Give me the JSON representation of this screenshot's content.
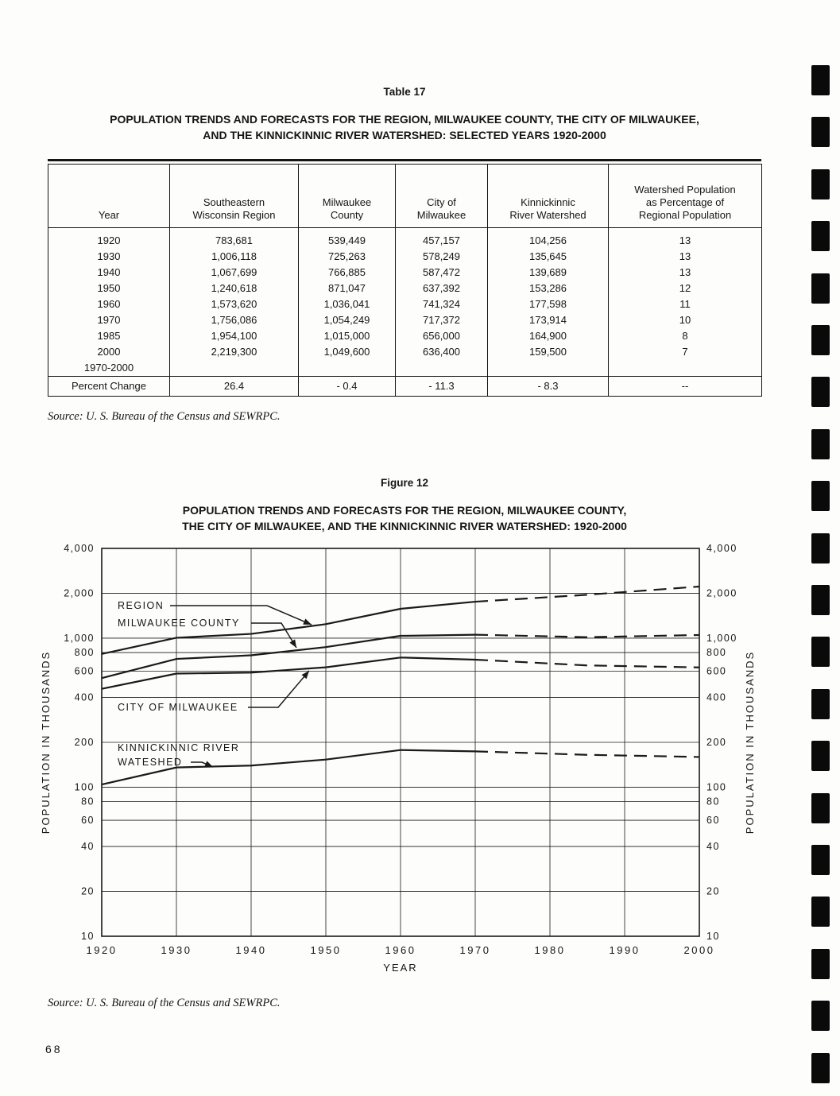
{
  "page": {
    "number": "68"
  },
  "table": {
    "label": "Table 17",
    "title_line1": "POPULATION TRENDS AND FORECASTS FOR THE REGION, MILWAUKEE COUNTY, THE CITY OF MILWAUKEE,",
    "title_line2": "AND THE KINNICKINNIC RIVER WATERSHED: SELECTED YEARS 1920-2000",
    "columns": [
      "Year",
      "Southeastern\nWisconsin Region",
      "Milwaukee\nCounty",
      "City of\nMilwaukee",
      "Kinnickinnic\nRiver Watershed",
      "Watershed Population\nas Percentage of\nRegional Population"
    ],
    "rows": [
      [
        "1920",
        "783,681",
        "539,449",
        "457,157",
        "104,256",
        "13"
      ],
      [
        "1930",
        "1,006,118",
        "725,263",
        "578,249",
        "135,645",
        "13"
      ],
      [
        "1940",
        "1,067,699",
        "766,885",
        "587,472",
        "139,689",
        "13"
      ],
      [
        "1950",
        "1,240,618",
        "871,047",
        "637,392",
        "153,286",
        "12"
      ],
      [
        "1960",
        "1,573,620",
        "1,036,041",
        "741,324",
        "177,598",
        "11"
      ],
      [
        "1970",
        "1,756,086",
        "1,054,249",
        "717,372",
        "173,914",
        "10"
      ],
      [
        "1985",
        "1,954,100",
        "1,015,000",
        "656,000",
        "164,900",
        "8"
      ],
      [
        "2000",
        "2,219,300",
        "1,049,600",
        "636,400",
        "159,500",
        "7"
      ]
    ],
    "span_row": "1970-2000",
    "percent_row": [
      "Percent Change",
      "26.4",
      "- 0.4",
      "- 11.3",
      "- 8.3",
      "--"
    ],
    "source": "Source:  U. S. Bureau of the Census and SEWRPC."
  },
  "figure": {
    "label": "Figure 12",
    "title_line1": "POPULATION TRENDS AND FORECASTS FOR THE REGION, MILWAUKEE COUNTY,",
    "title_line2": "THE CITY OF MILWAUKEE, AND THE KINNICKINNIC RIVER WATERSHED: 1920-2000",
    "source": "Source:  U. S. Bureau of the Census and SEWRPC."
  },
  "chart_data": {
    "type": "line",
    "x": [
      1920,
      1930,
      1940,
      1950,
      1960,
      1970,
      1985,
      2000
    ],
    "x_ticks": [
      1920,
      1930,
      1940,
      1950,
      1960,
      1970,
      1980,
      1990,
      2000
    ],
    "xlabel": "YEAR",
    "ylabel": "POPULATION IN THOUSANDS",
    "y_scale": "log",
    "ylim": [
      10,
      4000
    ],
    "y_ticks": [
      10,
      20,
      40,
      60,
      80,
      100,
      200,
      400,
      600,
      800,
      1000,
      2000,
      4000
    ],
    "grid": true,
    "forecast_from": 1970,
    "forecast_style": "dashed",
    "series": [
      {
        "name": "REGION",
        "values": [
          783.681,
          1006.118,
          1067.699,
          1240.618,
          1573.62,
          1756.086,
          1954.1,
          2219.3
        ]
      },
      {
        "name": "MILWAUKEE COUNTY",
        "values": [
          539.449,
          725.263,
          766.885,
          871.047,
          1036.041,
          1054.249,
          1015.0,
          1049.6
        ]
      },
      {
        "name": "CITY OF MILWAUKEE",
        "values": [
          457.157,
          578.249,
          587.472,
          637.392,
          741.324,
          717.372,
          656.0,
          636.4
        ]
      },
      {
        "name": "KINNICKINNIC RIVER WATESHED",
        "values": [
          104.256,
          135.645,
          139.689,
          153.286,
          177.598,
          173.914,
          164.9,
          159.5
        ]
      }
    ],
    "annotations": [
      "REGION",
      "MILWAUKEE COUNTY",
      "CITY OF MILWAUKEE",
      "KINNICKINNIC RIVER",
      "WATESHED"
    ]
  }
}
